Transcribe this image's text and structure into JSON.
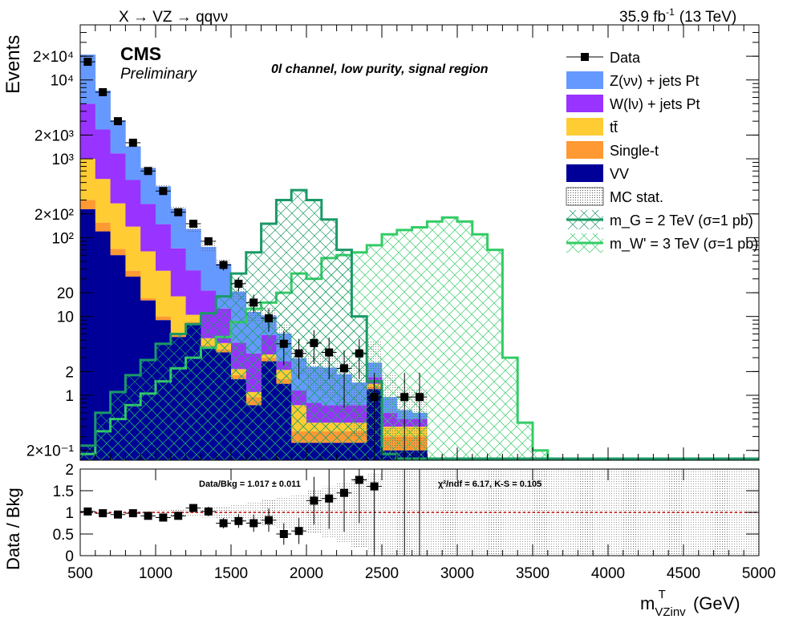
{
  "header": {
    "process": "X → VZ → qqνν",
    "lumi": "35.9 fb",
    "lumi_sup": "-1",
    "energy": "(13 TeV)"
  },
  "labels": {
    "experiment": "CMS",
    "status": "Preliminary",
    "channel": "0l channel, low purity, signal region"
  },
  "stats": {
    "ratio": "Data/Bkg = 1.017 ± 0.011",
    "gof": "χ²/ndf = 6.17,   K-S = 0.105"
  },
  "colors": {
    "zvv": "#6699ff",
    "wlv": "#9933ff",
    "ttbar": "#ffcc33",
    "singlet": "#ff9933",
    "vv": "#000099",
    "sig_g": "#1a9966",
    "sig_w": "#33cc66",
    "ratio_line": "#cc0000"
  },
  "chart_data": [
    {
      "type": "bar",
      "stacked": true,
      "xlabel": "m_VZinv^T (GeV)",
      "ylabel": "Events",
      "xlim": [
        500,
        5000
      ],
      "ylim": [
        0.15,
        50000
      ],
      "yscale": "log",
      "ytick_labels": [
        "2×10⁻¹",
        "1",
        "2",
        "10",
        "20",
        "10²",
        "2×10²",
        "10³",
        "2×10³",
        "10⁴",
        "2×10⁴"
      ],
      "ytick_values": [
        0.2,
        1,
        2,
        10,
        20,
        100,
        200,
        1000,
        2000,
        10000,
        20000
      ],
      "xticks": [
        500,
        1000,
        1500,
        2000,
        2500,
        3000,
        3500,
        4000,
        4500,
        5000
      ],
      "bin_edges": [
        500,
        600,
        700,
        800,
        900,
        1000,
        1100,
        1200,
        1300,
        1400,
        1500,
        1600,
        1700,
        1800,
        1900,
        2000,
        2100,
        2200,
        2300,
        2400,
        2500,
        2600,
        2700,
        2800
      ],
      "series": [
        {
          "name": "VV",
          "values": [
            230,
            120,
            60,
            32,
            16,
            9,
            5.5,
            8,
            4,
            3.5,
            1.6,
            0.75,
            2.7,
            1.4,
            0.25,
            0.25,
            0.25,
            0.25,
            0.25,
            1.2,
            0.2,
            0.2,
            0.2
          ]
        },
        {
          "name": "Single-t",
          "values": [
            70,
            35,
            12,
            6,
            1,
            1,
            0.5,
            0.5,
            0.3,
            0.3,
            0.2,
            0.2,
            0.3,
            0.2,
            0.1,
            0.1,
            0.1,
            0.1,
            0.1,
            0.1,
            0.1,
            0.1,
            0.1
          ]
        },
        {
          "name": "tt̄",
          "values": [
            700,
            400,
            200,
            100,
            50,
            28,
            12,
            2,
            1,
            0.8,
            0.35,
            0.15,
            0.3,
            0.5,
            0.4,
            0.1,
            0.1,
            0.1,
            0.1,
            0.1,
            0.1,
            0.1,
            0.1
          ]
        },
        {
          "name": "W(lν) + jets Pt",
          "values": [
            4000,
            1800,
            900,
            400,
            200,
            110,
            55,
            28,
            16,
            8,
            2.5,
            2.3,
            2.5,
            0.6,
            0.4,
            0.35,
            0.3,
            0.3,
            0.3,
            0.3,
            0.2,
            0.1,
            0.1
          ]
        },
        {
          "name": "Z(νν) + jets Pt",
          "values": [
            16000,
            5000,
            1900,
            900,
            500,
            300,
            160,
            90,
            55,
            34,
            16,
            8,
            4.5,
            3.4,
            1.8,
            1.5,
            1.5,
            1.1,
            0.7,
            0.9,
            0.35,
            0.15,
            0.1
          ]
        }
      ],
      "data_points": {
        "name": "Data",
        "x": [
          550,
          650,
          750,
          850,
          950,
          1050,
          1150,
          1250,
          1350,
          1450,
          1550,
          1650,
          1750,
          1850,
          1950,
          2050,
          2150,
          2250,
          2350,
          2450,
          2650,
          2750
        ],
        "y": [
          17000,
          7000,
          3000,
          1600,
          700,
          390,
          210,
          150,
          90,
          45,
          26,
          15,
          9.5,
          4.5,
          3.4,
          4.6,
          3.5,
          2.2,
          3.4,
          0.95,
          0.95,
          0.95
        ],
        "yerr": [
          130,
          84,
          55,
          40,
          26,
          20,
          14,
          12,
          9.5,
          6.7,
          5.1,
          3.9,
          3.1,
          2.1,
          1.8,
          2.1,
          1.9,
          1.5,
          1.8,
          0.98,
          0.98,
          0.98
        ]
      },
      "signals": [
        {
          "name": "m_G = 2 TeV (σ=1 pb)",
          "bin_edges": [
            500,
            600,
            700,
            800,
            900,
            1000,
            1100,
            1200,
            1300,
            1400,
            1500,
            1600,
            1700,
            1800,
            1900,
            2000,
            2100,
            2200,
            2300,
            2400,
            2500,
            2600
          ],
          "values": [
            0.23,
            0.6,
            1.1,
            1.8,
            2.8,
            4.5,
            6,
            8,
            11,
            18,
            35,
            65,
            150,
            300,
            400,
            300,
            170,
            70,
            10,
            1.5,
            0.18
          ]
        },
        {
          "name": "m_W' = 3 TeV (σ=1 pb)",
          "bin_edges": [
            500,
            600,
            700,
            800,
            900,
            1000,
            1100,
            1200,
            1300,
            1400,
            1500,
            1600,
            1700,
            1800,
            1900,
            2000,
            2100,
            2200,
            2300,
            2400,
            2500,
            2600,
            2700,
            2800,
            2900,
            3000,
            3100,
            3200,
            3300,
            3400,
            3500,
            3600
          ],
          "values": [
            0.18,
            0.35,
            0.5,
            0.75,
            1.05,
            1.5,
            2.2,
            3,
            4,
            5.5,
            8.5,
            12.5,
            15,
            20,
            35,
            30,
            55,
            60,
            65,
            80,
            110,
            125,
            135,
            160,
            180,
            160,
            110,
            70,
            3,
            0.45,
            0.2
          ]
        }
      ],
      "legend": {
        "placement": "top-right",
        "entries": [
          "Data",
          "Z(νν) + jets Pt",
          "W(lν) + jets Pt",
          "tt̄",
          "Single-t",
          "VV",
          "MC stat.",
          "m_G = 2 TeV (σ=1 pb)",
          "m_W' = 3 TeV (σ=1 pb)"
        ]
      }
    },
    {
      "type": "scatter",
      "ylabel": "Data / Bkg",
      "xlabel": "m_VZinv^T (GeV)",
      "xlim": [
        500,
        5000
      ],
      "ylim": [
        0,
        2
      ],
      "yticks": [
        0,
        0.5,
        1,
        1.5,
        2
      ],
      "reference_line": 1,
      "ratio_points": {
        "x": [
          550,
          650,
          750,
          850,
          950,
          1050,
          1150,
          1250,
          1350,
          1450,
          1550,
          1650,
          1750,
          1850,
          1950,
          2050,
          2150,
          2250,
          2350,
          2450
        ],
        "y": [
          1.02,
          0.98,
          0.95,
          0.98,
          0.92,
          0.88,
          0.92,
          1.1,
          1.02,
          0.75,
          0.8,
          0.75,
          0.82,
          0.5,
          0.57,
          1.27,
          1.32,
          1.45,
          1.75,
          1.6
        ],
        "yerr": [
          0.01,
          0.015,
          0.02,
          0.03,
          0.04,
          0.05,
          0.07,
          0.09,
          0.11,
          0.12,
          0.16,
          0.2,
          0.27,
          0.25,
          0.3,
          0.55,
          0.7,
          0.9,
          1.0,
          1.6
        ]
      },
      "open_error_bins": [
        2650,
        2750
      ],
      "mc_stat_band_halfwidth": [
        0.01,
        0.015,
        0.02,
        0.03,
        0.04,
        0.05,
        0.07,
        0.1,
        0.12,
        0.15,
        0.2,
        0.25,
        0.3,
        0.35,
        0.4,
        0.5,
        0.6,
        0.7,
        0.8,
        0.9,
        1.0,
        1.0,
        1.0
      ]
    }
  ]
}
